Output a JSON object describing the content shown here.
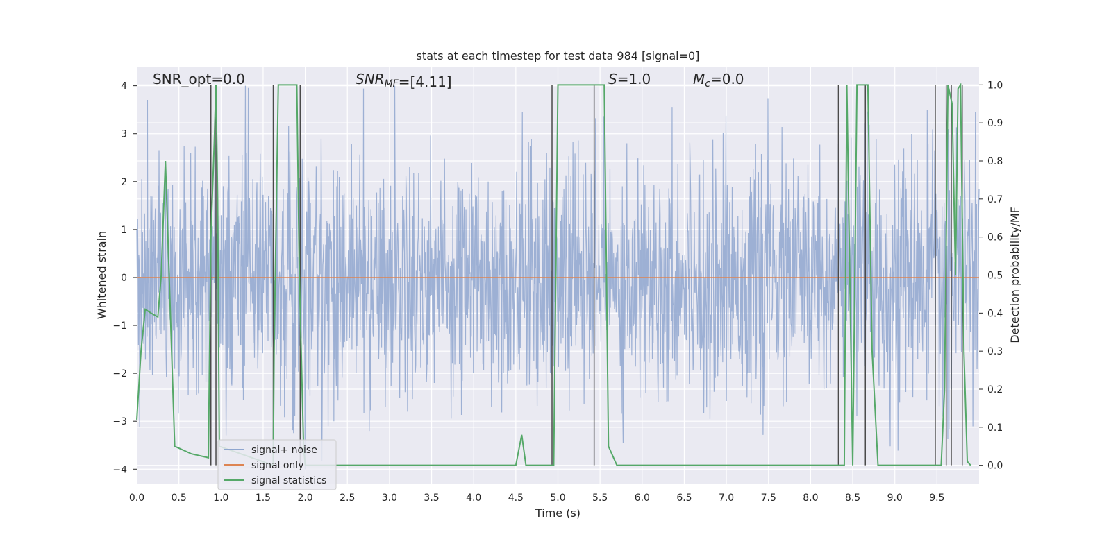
{
  "chart_data": {
    "type": "line",
    "title": "stats at each timestep for test data 984 [signal=0]",
    "xlabel": "Time (s)",
    "ylabel": "Whitened strain",
    "y2label": "Detection probability/MF",
    "xlim": [
      0.0,
      1.0
    ],
    "ylim": [
      -4.3,
      4.4
    ],
    "y2lim": [
      -0.048,
      1.048
    ],
    "x_ticks": [
      0.0,
      0.05,
      0.1,
      0.15,
      0.2,
      0.25,
      0.3,
      0.35,
      0.4,
      0.45,
      0.5,
      0.55,
      0.6,
      0.65,
      0.7,
      0.75,
      0.8,
      0.85,
      0.9,
      0.95
    ],
    "x_tick_labels": [
      "0.0",
      "0.5",
      "1.0",
      "1.5",
      "2.0",
      "2.5",
      "3.0",
      "3.5",
      "4.0",
      "4.5",
      "5.0",
      "5.5",
      "6.0",
      "6.5",
      "7.0",
      "7.5",
      "8.0",
      "8.5",
      "9.0",
      "9.5"
    ],
    "y_ticks": [
      -4,
      -3,
      -2,
      -1,
      0,
      1,
      2,
      3,
      4
    ],
    "y_tick_labels": [
      "−4",
      "−3",
      "−2",
      "−1",
      "0",
      "1",
      "2",
      "3",
      "4"
    ],
    "y2_ticks": [
      0.0,
      0.1,
      0.2,
      0.3,
      0.4,
      0.5,
      0.6,
      0.7,
      0.8,
      0.9,
      1.0
    ],
    "y2_tick_labels": [
      "0.0",
      "0.1",
      "0.2",
      "0.3",
      "0.4",
      "0.5",
      "0.6",
      "0.7",
      "0.8",
      "0.9",
      "1.0"
    ],
    "grid": true,
    "legend_position": "lower-left",
    "annotations": [
      {
        "text": "SNR_opt=0.0"
      },
      {
        "text": "SNR_MF=[4.11]"
      },
      {
        "text": "S=1.0"
      },
      {
        "text": "M_c=0.0"
      }
    ],
    "series": [
      {
        "name": "signal+ noise",
        "color": "#8fa6cf",
        "kind": "noise",
        "amplitude_typical": 2.0,
        "amplitude_max": 4.0,
        "note_seed": 984
      },
      {
        "name": "signal only",
        "color": "#dd8452",
        "kind": "line",
        "x": [
          0.0,
          1.0
        ],
        "y": [
          0.0,
          0.0
        ]
      },
      {
        "name": "signal statistics",
        "color": "#55a868",
        "kind": "line",
        "axis": "y2",
        "x": [
          0.0,
          0.005,
          0.01,
          0.017,
          0.025,
          0.029,
          0.034,
          0.045,
          0.065,
          0.085,
          0.088,
          0.092,
          0.094,
          0.096,
          0.098,
          0.162,
          0.163,
          0.168,
          0.175,
          0.19,
          0.193,
          0.198,
          0.2,
          0.3,
          0.35,
          0.4,
          0.42,
          0.45,
          0.457,
          0.462,
          0.48,
          0.49,
          0.495,
          0.5,
          0.55,
          0.555,
          0.56,
          0.57,
          0.85,
          0.84,
          0.843,
          0.855,
          0.868,
          0.873,
          0.88,
          0.93,
          0.955,
          0.959,
          0.963,
          0.968,
          0.972,
          0.975,
          0.978,
          0.982,
          0.986,
          0.99
        ],
        "y": [
          0.12,
          0.3,
          0.41,
          0.4,
          0.39,
          0.5,
          0.8,
          0.05,
          0.03,
          0.02,
          0.6,
          0.85,
          1.0,
          0.7,
          0.05,
          0.0,
          0.3,
          1.0,
          1.0,
          1.0,
          0.5,
          0.05,
          0.0,
          0.0,
          0.0,
          0.0,
          0.0,
          0.0,
          0.08,
          0.0,
          0.0,
          0.0,
          0.0,
          1.0,
          1.0,
          1.0,
          0.05,
          0.0,
          0.0,
          0.0,
          1.0,
          1.0,
          1.0,
          0.3,
          0.0,
          0.0,
          0.0,
          0.2,
          1.0,
          0.95,
          0.5,
          0.99,
          1.0,
          0.3,
          0.01,
          0.0
        ]
      }
    ],
    "vertical_lines": [
      0.088,
      0.094,
      0.162,
      0.194,
      0.493,
      0.543,
      0.833,
      0.865,
      0.948,
      0.961,
      0.967,
      0.98
    ]
  },
  "legend": {
    "items": [
      {
        "label": "signal+ noise",
        "color": "#8fa6cf"
      },
      {
        "label": "signal only",
        "color": "#dd8452"
      },
      {
        "label": "signal statistics",
        "color": "#55a868"
      }
    ]
  }
}
